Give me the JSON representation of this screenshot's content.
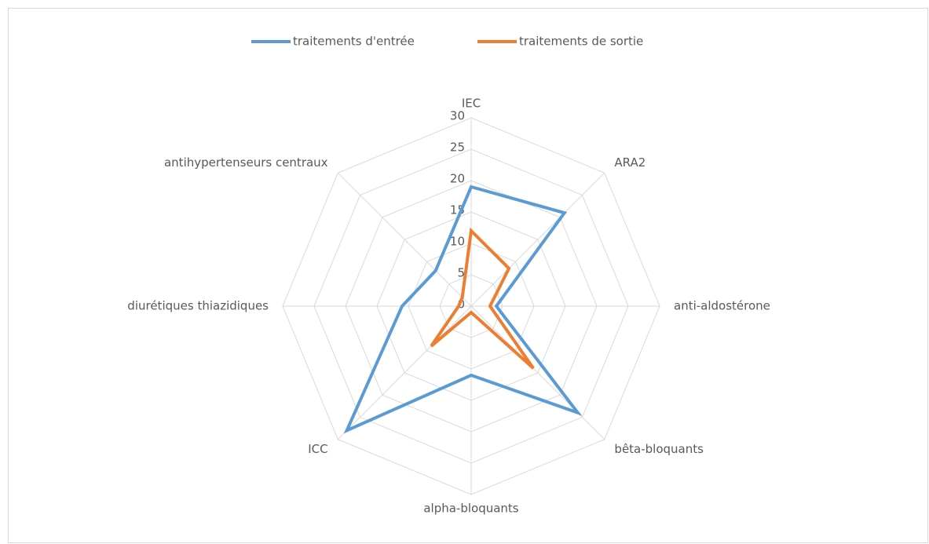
{
  "chart_data": {
    "type": "radar",
    "categories": [
      "IEC",
      "ARA2",
      "anti-aldostérone",
      "bêta-bloquants",
      "alpha-bloquants",
      "ICC",
      "diurétiques thiazidiques",
      "antihypertenseurs centraux"
    ],
    "series": [
      {
        "name": "traitements d'entrée",
        "color": "#5b9bd5",
        "values": [
          19,
          21,
          4,
          24,
          11,
          28,
          11,
          8
        ]
      },
      {
        "name": "traitements de sortie",
        "color": "#ed7d31",
        "values": [
          12,
          8.5,
          3,
          14,
          1,
          9,
          2,
          2
        ]
      }
    ],
    "ylim": [
      0,
      30
    ],
    "yticks": [
      0,
      5,
      10,
      15,
      20,
      25,
      30
    ],
    "grid": true,
    "legend": "top"
  }
}
